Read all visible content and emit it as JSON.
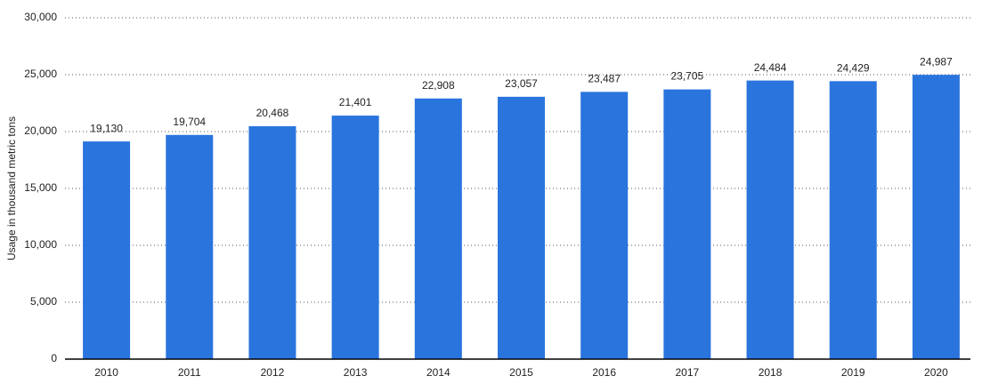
{
  "chart_data": {
    "type": "bar",
    "y_label": "Usage in thousand metric tons",
    "categories": [
      "2010",
      "2011",
      "2012",
      "2013",
      "2014",
      "2015",
      "2016",
      "2017",
      "2018",
      "2019",
      "2020"
    ],
    "values": [
      19130,
      19704,
      20468,
      21401,
      22908,
      23057,
      23487,
      23705,
      24484,
      24429,
      24987
    ],
    "value_labels": [
      "19,130",
      "19,704",
      "20,468",
      "21,401",
      "22,908",
      "23,057",
      "23,487",
      "23,705",
      "24,484",
      "24,429",
      "24,987"
    ],
    "color": "#2a74de",
    "ylim": [
      0,
      30000
    ],
    "yticks": [
      0,
      {
        "value": 5000,
        "label": "5,000"
      },
      {
        "value": 10000,
        "label": "10,000"
      },
      {
        "value": 15000,
        "label": "15,000"
      },
      {
        "value": 20000,
        "label": "20,000"
      },
      {
        "value": 25000,
        "label": "25,000"
      },
      {
        "value": 30000,
        "label": "30,000"
      }
    ],
    "grid": true
  }
}
